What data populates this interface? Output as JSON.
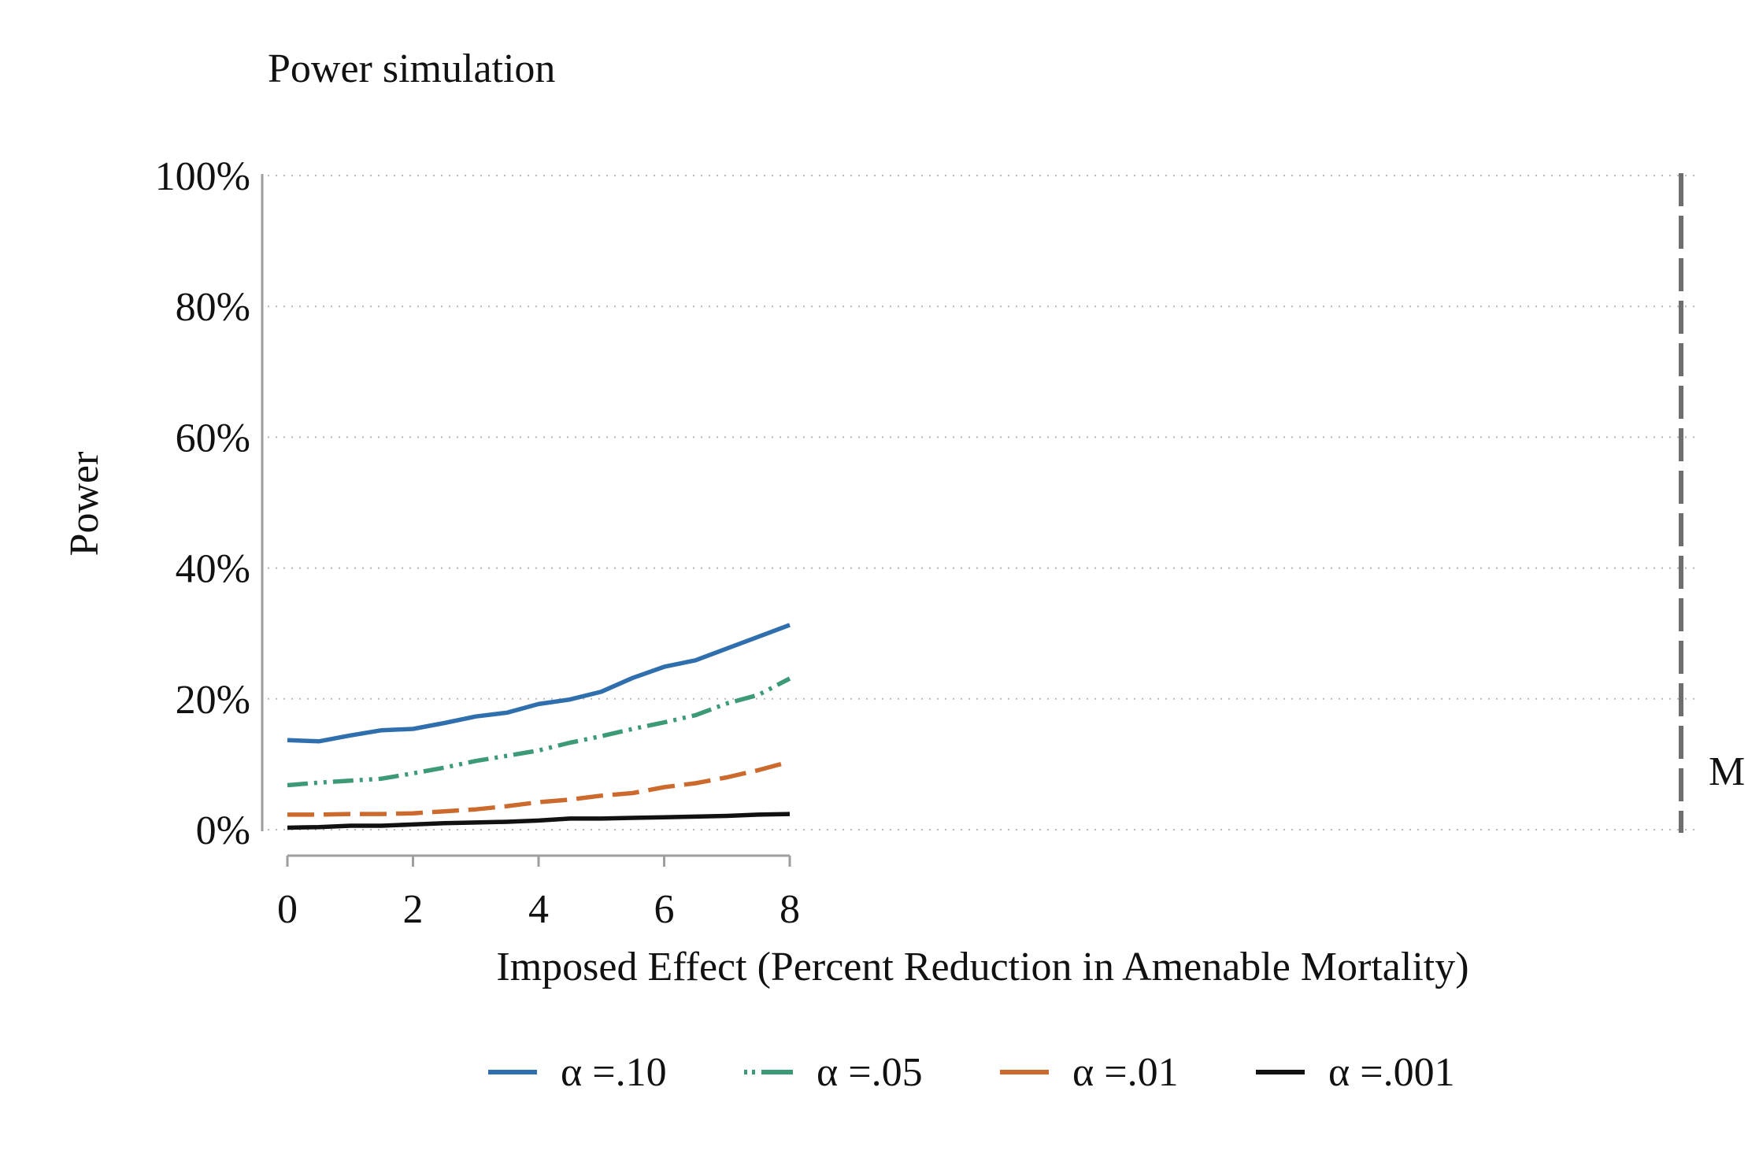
{
  "chart_data": {
    "type": "line",
    "title": "Power simulation",
    "xlabel": "Imposed Effect (Percent Reduction in Amenable Mortality)",
    "ylabel": "Power",
    "xlim": [
      0,
      8
    ],
    "ylim": [
      0,
      100
    ],
    "x_ticks": [
      "0",
      "2",
      "4",
      "6",
      "8"
    ],
    "y_ticks": [
      "0%",
      "20%",
      "40%",
      "60%",
      "80%",
      "100%"
    ],
    "grid": true,
    "legend_position": "bottom",
    "reference_line": {
      "label": "M",
      "color": "#6e6e6e"
    },
    "x": [
      0,
      0.5,
      1,
      1.5,
      2,
      2.5,
      3,
      3.5,
      4,
      4.5,
      5,
      5.5,
      6,
      6.5,
      7,
      7.5,
      8
    ],
    "series": [
      {
        "name": "α =.10",
        "color": "#2f6fae",
        "dash": "solid",
        "values": [
          13.7,
          13.5,
          14.4,
          15.2,
          15.4,
          16.3,
          17.3,
          17.9,
          19.2,
          19.9,
          21.1,
          23.2,
          24.9,
          25.9,
          27.7,
          29.5,
          31.3
        ]
      },
      {
        "name": "α =.05",
        "color": "#3d9a76",
        "dash": "dashdotdot",
        "values": [
          6.8,
          7.2,
          7.5,
          7.8,
          8.6,
          9.5,
          10.5,
          11.3,
          12.1,
          13.3,
          14.3,
          15.4,
          16.4,
          17.5,
          19.3,
          20.6,
          23.1
        ]
      },
      {
        "name": "α =.01",
        "color": "#cc6a2e",
        "dash": "dashed",
        "values": [
          2.3,
          2.3,
          2.4,
          2.4,
          2.5,
          2.8,
          3.1,
          3.6,
          4.2,
          4.6,
          5.2,
          5.6,
          6.5,
          7.1,
          8.0,
          9.1,
          10.4
        ]
      },
      {
        "name": "α =.001",
        "color": "#111111",
        "dash": "solid",
        "values": [
          0.3,
          0.4,
          0.6,
          0.6,
          0.8,
          1.0,
          1.1,
          1.2,
          1.4,
          1.7,
          1.7,
          1.8,
          1.9,
          2.0,
          2.1,
          2.3,
          2.4
        ]
      }
    ]
  }
}
